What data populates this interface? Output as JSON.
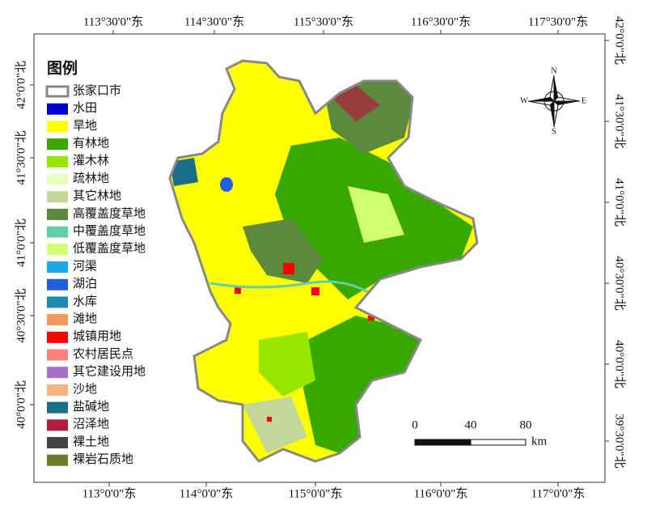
{
  "map": {
    "top_labels": [
      "113°30'0\"东",
      "114°30'0\"东",
      "115°30'0\"东",
      "116°30'0\"东",
      "117°30'0\"东"
    ],
    "bottom_labels": [
      "113°0'0\"东",
      "114°0'0\"东",
      "115°0'0\"东",
      "116°0'0\"东",
      "117°0'0\"东"
    ],
    "left_labels": [
      "42°0'0\"北",
      "41°30'0\"北",
      "41°0'0\"北",
      "40°30'0\"北",
      "40°0'0\"北"
    ],
    "right_labels": [
      "42°0'0\"北",
      "41°30'0\"北",
      "41°0'0\"北",
      "40°30'0\"北",
      "40°0'0\"北",
      "39°30'0\"北"
    ],
    "legend": {
      "title": "图例",
      "items": [
        {
          "label": "张家口市",
          "color": "#888888",
          "outline": true
        },
        {
          "label": "水田",
          "color": "#0000c8"
        },
        {
          "label": "旱地",
          "color": "#ffff00"
        },
        {
          "label": "有林地",
          "color": "#38a800"
        },
        {
          "label": "灌木林",
          "color": "#98e600"
        },
        {
          "label": "疏林地",
          "color": "#e6ffbe"
        },
        {
          "label": "其它林地",
          "color": "#c4d79b"
        },
        {
          "label": "高覆盖度草地",
          "color": "#5c8a3c"
        },
        {
          "label": "中覆盖度草地",
          "color": "#66cdab"
        },
        {
          "label": "低覆盖度草地",
          "color": "#d1ff73"
        },
        {
          "label": "河渠",
          "color": "#1ea9e6"
        },
        {
          "label": "湖泊",
          "color": "#1f5fe0"
        },
        {
          "label": "水库",
          "color": "#1b8cb0"
        },
        {
          "label": "滩地",
          "color": "#f09b5a"
        },
        {
          "label": "城镇用地",
          "color": "#ff0000"
        },
        {
          "label": "农村居民点",
          "color": "#ff8080"
        },
        {
          "label": "其它建设用地",
          "color": "#a86fc8"
        },
        {
          "label": "沙地",
          "color": "#f5b47d"
        },
        {
          "label": "盐碱地",
          "color": "#1a6e8a"
        },
        {
          "label": "沼泽地",
          "color": "#b01e3c"
        },
        {
          "label": "裸土地",
          "color": "#444444"
        },
        {
          "label": "裸岩石质地",
          "color": "#6f7a2e"
        }
      ]
    },
    "scale_bar": {
      "labels": [
        "0",
        "40",
        "80"
      ],
      "unit": "km"
    },
    "north_arrow": {
      "n": "N",
      "s": "S",
      "e": "E",
      "w": "W"
    }
  }
}
